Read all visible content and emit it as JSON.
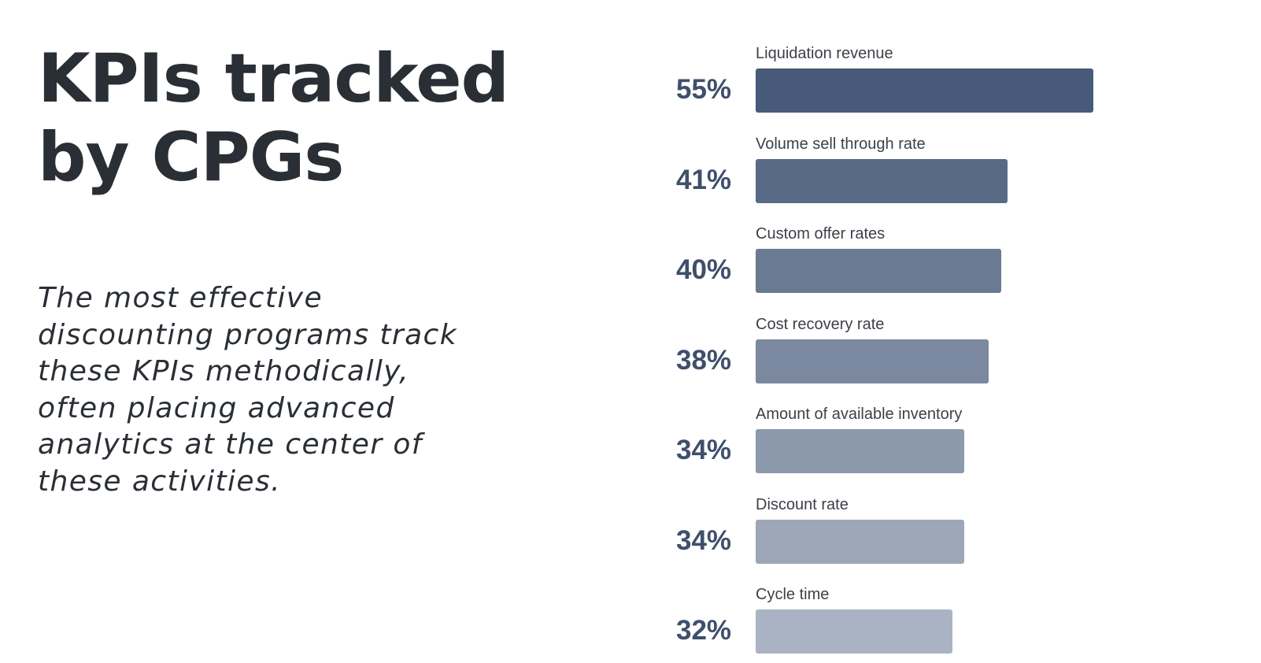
{
  "title_lines": [
    "KPIs tracked",
    "by CPGs"
  ],
  "body_text": "The most effective discounting programs track these KPIs methodically, often placing advanced analytics at the center of these activities.",
  "chart_data": {
    "type": "bar",
    "orientation": "horizontal",
    "title": "",
    "xlabel": "",
    "ylabel": "",
    "categories": [
      "Liquidation revenue",
      "Volume sell through rate",
      "Custom offer rates",
      "Cost recovery rate",
      "Amount of available inventory",
      "Discount rate",
      "Cycle time"
    ],
    "values": [
      55,
      41,
      40,
      38,
      34,
      34,
      32
    ],
    "value_labels": [
      "55%",
      "41%",
      "40%",
      "38%",
      "34%",
      "34%",
      "32%"
    ],
    "bar_colors": [
      "#475a79",
      "#586a85",
      "#6a7a93",
      "#7b89a0",
      "#8c98ac",
      "#9da7b8",
      "#aab3c3"
    ],
    "grid": false,
    "legend": "none"
  }
}
